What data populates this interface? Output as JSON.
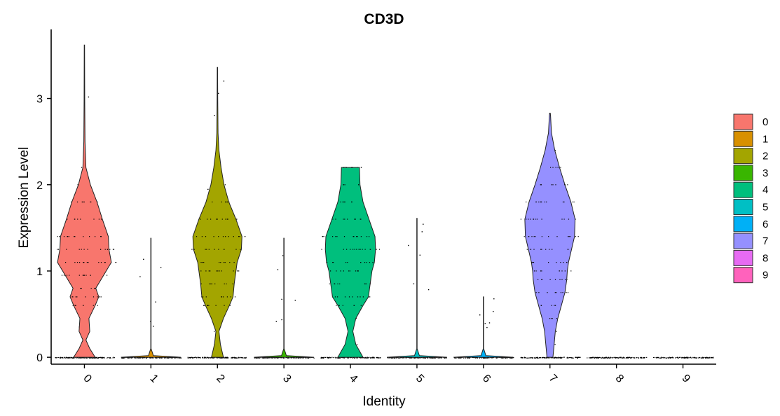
{
  "chart_data": {
    "type": "violin",
    "title": "CD3D",
    "xlabel": "Identity",
    "ylabel": "Expression Level",
    "ylim": [
      -0.08,
      3.8
    ],
    "y_ticks": [
      0,
      1,
      2,
      3
    ],
    "categories": [
      "0",
      "1",
      "2",
      "3",
      "4",
      "5",
      "6",
      "7",
      "8",
      "9"
    ],
    "legend_position": "right",
    "grid": false,
    "colors": [
      "#F8766D",
      "#D89000",
      "#A3A500",
      "#39B600",
      "#00BF7D",
      "#00BFC4",
      "#00B0F6",
      "#9590FF",
      "#E76BF3",
      "#FF62BC"
    ],
    "violins": [
      {
        "identity": "0",
        "max": 3.62,
        "profile": [
          [
            0,
            0.36
          ],
          [
            0.1,
            0.18
          ],
          [
            0.2,
            0.05
          ],
          [
            0.3,
            0.18
          ],
          [
            0.45,
            0.15
          ],
          [
            0.6,
            0.36
          ],
          [
            0.7,
            0.48
          ],
          [
            0.8,
            0.38
          ],
          [
            0.95,
            0.64
          ],
          [
            1.1,
            0.9
          ],
          [
            1.25,
            0.82
          ],
          [
            1.4,
            0.8
          ],
          [
            1.6,
            0.6
          ],
          [
            1.8,
            0.42
          ],
          [
            2.0,
            0.2
          ],
          [
            2.2,
            0.05
          ],
          [
            2.5,
            0.02
          ],
          [
            3.0,
            0.01
          ],
          [
            3.62,
            0.005
          ]
        ]
      },
      {
        "identity": "1",
        "max": 1.38,
        "profile": [
          [
            0,
            1.0
          ],
          [
            0.02,
            0.08
          ],
          [
            0.1,
            0.005
          ],
          [
            1.38,
            0.005
          ]
        ]
      },
      {
        "identity": "2",
        "max": 3.36,
        "profile": [
          [
            0,
            0.2
          ],
          [
            0.15,
            0.1
          ],
          [
            0.3,
            0.05
          ],
          [
            0.45,
            0.2
          ],
          [
            0.6,
            0.4
          ],
          [
            0.7,
            0.52
          ],
          [
            0.85,
            0.56
          ],
          [
            1.0,
            0.62
          ],
          [
            1.1,
            0.66
          ],
          [
            1.25,
            0.8
          ],
          [
            1.4,
            0.82
          ],
          [
            1.6,
            0.62
          ],
          [
            1.8,
            0.38
          ],
          [
            2.0,
            0.22
          ],
          [
            2.2,
            0.12
          ],
          [
            2.4,
            0.05
          ],
          [
            2.6,
            0.02
          ],
          [
            3.0,
            0.01
          ],
          [
            3.36,
            0.005
          ]
        ]
      },
      {
        "identity": "3",
        "max": 1.38,
        "profile": [
          [
            0,
            1.0
          ],
          [
            0.02,
            0.08
          ],
          [
            0.1,
            0.005
          ],
          [
            1.38,
            0.005
          ]
        ]
      },
      {
        "identity": "4",
        "max": 2.2,
        "profile": [
          [
            0,
            0.42
          ],
          [
            0.15,
            0.18
          ],
          [
            0.3,
            0.08
          ],
          [
            0.45,
            0.18
          ],
          [
            0.6,
            0.42
          ],
          [
            0.7,
            0.6
          ],
          [
            0.85,
            0.66
          ],
          [
            1.0,
            0.72
          ],
          [
            1.1,
            0.8
          ],
          [
            1.25,
            0.84
          ],
          [
            1.4,
            0.82
          ],
          [
            1.6,
            0.62
          ],
          [
            1.8,
            0.42
          ],
          [
            2.0,
            0.32
          ],
          [
            2.2,
            0.3
          ]
        ]
      },
      {
        "identity": "5",
        "max": 1.61,
        "profile": [
          [
            0,
            1.0
          ],
          [
            0.02,
            0.08
          ],
          [
            0.1,
            0.005
          ],
          [
            1.61,
            0.005
          ]
        ]
      },
      {
        "identity": "6",
        "max": 0.7,
        "profile": [
          [
            0,
            1.0
          ],
          [
            0.02,
            0.08
          ],
          [
            0.1,
            0.005
          ],
          [
            0.7,
            0.005
          ]
        ]
      },
      {
        "identity": "7",
        "max": 2.83,
        "profile": [
          [
            0,
            0.1
          ],
          [
            0.15,
            0.14
          ],
          [
            0.3,
            0.18
          ],
          [
            0.45,
            0.26
          ],
          [
            0.6,
            0.38
          ],
          [
            0.75,
            0.5
          ],
          [
            0.9,
            0.56
          ],
          [
            1.0,
            0.58
          ],
          [
            1.1,
            0.62
          ],
          [
            1.25,
            0.72
          ],
          [
            1.4,
            0.82
          ],
          [
            1.6,
            0.84
          ],
          [
            1.8,
            0.7
          ],
          [
            2.0,
            0.5
          ],
          [
            2.2,
            0.32
          ],
          [
            2.4,
            0.16
          ],
          [
            2.6,
            0.05
          ],
          [
            2.8,
            0.02
          ],
          [
            2.83,
            0.01
          ]
        ]
      },
      {
        "identity": "8",
        "max": 0.0,
        "profile": []
      },
      {
        "identity": "9",
        "max": 0.0,
        "profile": []
      }
    ]
  }
}
